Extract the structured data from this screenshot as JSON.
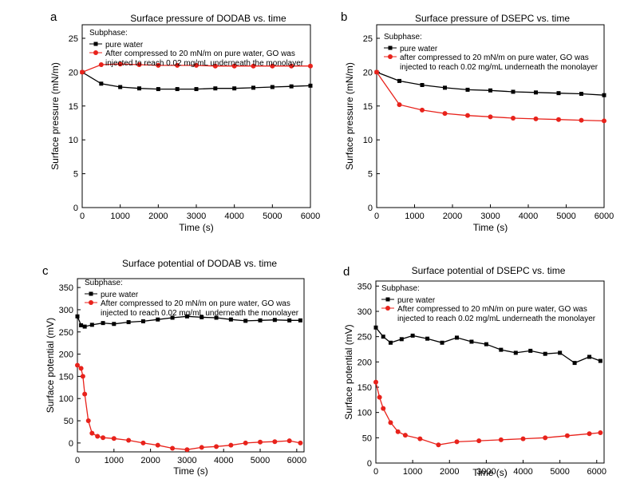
{
  "chart_data": [
    {
      "panel_letter": "a",
      "type": "line",
      "title": "Surface pressure of DODAB vs. time",
      "xlabel": "Time (s)",
      "ylabel": "Surface pressure (mN/m)",
      "xlim": [
        0,
        6000
      ],
      "ylim": [
        0,
        27
      ],
      "xticks": [
        0,
        1000,
        2000,
        3000,
        4000,
        5000,
        6000
      ],
      "yticks": [
        0,
        5,
        10,
        15,
        20,
        25
      ],
      "legend": {
        "title": "Subphase:",
        "entries": [
          "pure water",
          "After compressed to 20 mN/m on pure water, GO was",
          "injected to reach 0.02 mg/mL underneath the monolayer"
        ]
      },
      "series": [
        {
          "name": "pure water",
          "color": "#000000",
          "marker": "square",
          "x": [
            0,
            500,
            1000,
            1500,
            2000,
            2500,
            3000,
            3500,
            4000,
            4500,
            5000,
            5500,
            6000
          ],
          "y": [
            20,
            18.3,
            17.8,
            17.6,
            17.5,
            17.5,
            17.5,
            17.6,
            17.6,
            17.7,
            17.8,
            17.9,
            18.0
          ]
        },
        {
          "name": "After compressed to 20 mN/m on pure water, GO was injected to reach 0.02 mg/mL underneath the monolayer",
          "color": "#e8221b",
          "marker": "circle",
          "x": [
            0,
            500,
            1000,
            1500,
            2000,
            2500,
            3000,
            3500,
            4000,
            4500,
            5000,
            5500,
            6000
          ],
          "y": [
            20,
            21.1,
            21.2,
            21.1,
            21.0,
            21.0,
            21.0,
            20.9,
            20.9,
            20.9,
            20.9,
            20.9,
            20.9
          ]
        }
      ]
    },
    {
      "panel_letter": "b",
      "type": "line",
      "title": "Surface pressure of DSEPC vs. time",
      "xlabel": "Time (s)",
      "ylabel": "Surface pressure (mN/m)",
      "xlim": [
        0,
        6000
      ],
      "ylim": [
        0,
        27
      ],
      "xticks": [
        0,
        1000,
        2000,
        3000,
        4000,
        5000,
        6000
      ],
      "yticks": [
        0,
        5,
        10,
        15,
        20,
        25
      ],
      "legend": {
        "title": "Subphase:",
        "entries": [
          "pure water",
          "after compressed to 20 mN/m on pure water, GO was",
          "injected to reach 0.02 mg/mL underneath the monolayer"
        ]
      },
      "series": [
        {
          "name": "pure water",
          "color": "#000000",
          "marker": "square",
          "x": [
            0,
            600,
            1200,
            1800,
            2400,
            3000,
            3600,
            4200,
            4800,
            5400,
            6000
          ],
          "y": [
            20,
            18.7,
            18.1,
            17.7,
            17.4,
            17.3,
            17.1,
            17.0,
            16.9,
            16.8,
            16.6
          ]
        },
        {
          "name": "after compressed to 20 mN/m on pure water, GO was injected to reach 0.02 mg/mL underneath the monolayer",
          "color": "#e8221b",
          "marker": "circle",
          "x": [
            0,
            600,
            1200,
            1800,
            2400,
            3000,
            3600,
            4200,
            4800,
            5400,
            6000
          ],
          "y": [
            20,
            15.2,
            14.4,
            13.9,
            13.6,
            13.4,
            13.2,
            13.1,
            13.0,
            12.9,
            12.8
          ]
        }
      ]
    },
    {
      "panel_letter": "c",
      "type": "line",
      "title": "Surface potential of DODAB vs. time",
      "xlabel": "Time (s)",
      "ylabel": "Surface potential (mV)",
      "xlim": [
        0,
        6200
      ],
      "ylim": [
        -20,
        370
      ],
      "xticks": [
        0,
        1000,
        2000,
        3000,
        4000,
        5000,
        6000
      ],
      "yticks": [
        0,
        50,
        100,
        150,
        200,
        250,
        300,
        350
      ],
      "legend": {
        "title": "Subphase:",
        "entries": [
          "pure water",
          "After compressed to 20 mN/m on pure water, GO was",
          "injected to reach 0.02 mg/mL underneath the monolayer"
        ]
      },
      "series": [
        {
          "name": "pure water",
          "color": "#000000",
          "marker": "square",
          "x": [
            0,
            100,
            200,
            400,
            700,
            1000,
            1400,
            1800,
            2200,
            2600,
            3000,
            3400,
            3800,
            4200,
            4600,
            5000,
            5400,
            5800,
            6100
          ],
          "y": [
            285,
            265,
            262,
            266,
            270,
            268,
            272,
            274,
            278,
            282,
            285,
            283,
            282,
            278,
            275,
            276,
            277,
            276,
            276
          ]
        },
        {
          "name": "After compressed to 20 mN/m on pure water, GO was injected to reach 0.02 mg/mL underneath the monolayer",
          "color": "#e8221b",
          "marker": "circle",
          "x": [
            0,
            100,
            150,
            200,
            300,
            400,
            550,
            700,
            1000,
            1400,
            1800,
            2200,
            2600,
            3000,
            3400,
            3800,
            4200,
            4600,
            5000,
            5400,
            5800,
            6100
          ],
          "y": [
            175,
            168,
            150,
            110,
            50,
            22,
            15,
            12,
            10,
            6,
            0,
            -5,
            -12,
            -15,
            -10,
            -8,
            -5,
            0,
            2,
            3,
            5,
            0
          ]
        }
      ]
    },
    {
      "panel_letter": "d",
      "type": "line",
      "title": "Surface potential of DSEPC vs. time",
      "xlabel": "Time (s)",
      "ylabel": "Surface potential (mV)",
      "xlim": [
        0,
        6200
      ],
      "ylim": [
        0,
        360
      ],
      "xticks": [
        0,
        1000,
        2000,
        3000,
        4000,
        5000,
        6000
      ],
      "yticks": [
        0,
        50,
        100,
        150,
        200,
        250,
        300,
        350
      ],
      "legend": {
        "title": "Subphase:",
        "entries": [
          "pure water",
          "After compressed to 20 mN/m on pure water, GO was",
          "injected to reach 0.02 mg/mL underneath the monolayer"
        ]
      },
      "series": [
        {
          "name": "pure water",
          "color": "#000000",
          "marker": "square",
          "x": [
            0,
            200,
            400,
            700,
            1000,
            1400,
            1800,
            2200,
            2600,
            3000,
            3400,
            3800,
            4200,
            4600,
            5000,
            5400,
            5800,
            6100
          ],
          "y": [
            268,
            250,
            238,
            245,
            252,
            246,
            238,
            248,
            240,
            235,
            224,
            218,
            222,
            216,
            218,
            198,
            210,
            202
          ]
        },
        {
          "name": "After compressed to 20 mN/m on pure water, GO was injected to reach 0.02 mg/mL underneath the monolayer",
          "color": "#e8221b",
          "marker": "circle",
          "x": [
            0,
            100,
            200,
            400,
            600,
            800,
            1200,
            1700,
            2200,
            2800,
            3400,
            4000,
            4600,
            5200,
            5800,
            6100
          ],
          "y": [
            160,
            130,
            108,
            80,
            62,
            55,
            48,
            36,
            42,
            44,
            46,
            48,
            50,
            54,
            58,
            60
          ]
        }
      ]
    }
  ]
}
